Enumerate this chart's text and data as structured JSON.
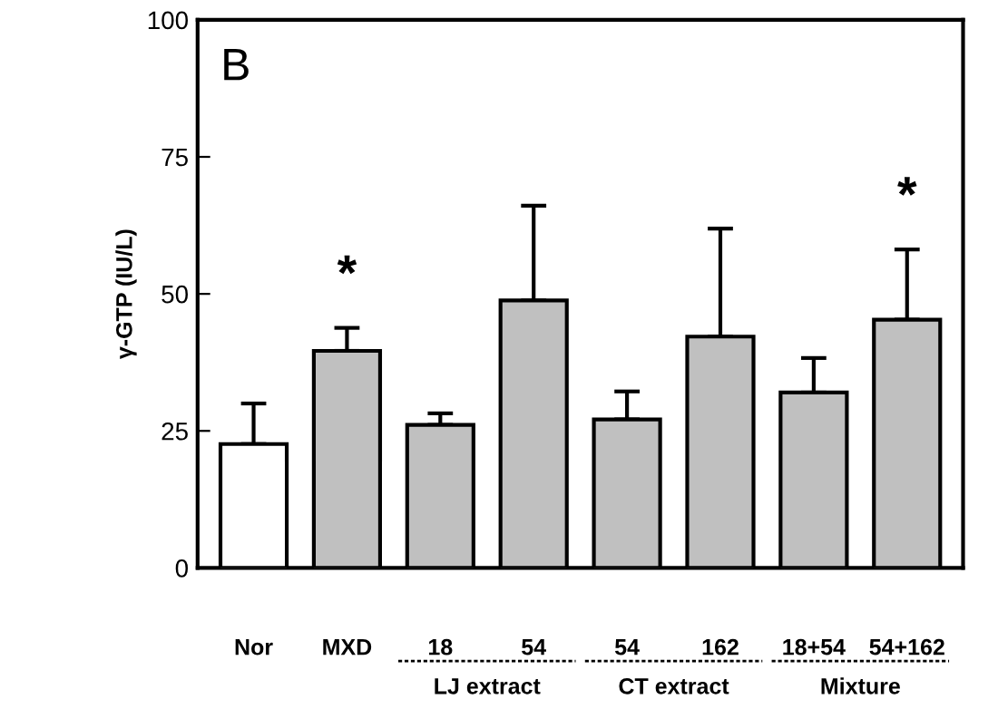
{
  "chart_data": {
    "type": "bar",
    "ylabel": "γ-GTP (IU/L)",
    "categories": [
      "Nor",
      "MXD",
      "18",
      "54",
      "54",
      "162",
      "18+54",
      "54+162"
    ],
    "values": [
      22.6,
      39.6,
      26.1,
      48.8,
      27.1,
      42.2,
      32.0,
      45.3
    ],
    "colors": [
      "#ffffff",
      "#c0c0c0",
      "#c0c0c0",
      "#c0c0c0",
      "#c0c0c0",
      "#c0c0c0",
      "#c0c0c0",
      "#c0c0c0"
    ],
    "errors": [
      [
        22.6,
        30.0
      ],
      [
        39.6,
        43.8
      ],
      [
        26.1,
        28.2
      ],
      [
        48.8,
        66.1
      ],
      [
        27.1,
        32.2
      ],
      [
        42.2,
        61.9
      ],
      [
        32.0,
        38.3
      ],
      [
        45.3,
        58.1
      ]
    ],
    "ylim": [
      0,
      100
    ],
    "yticks": [
      0,
      25,
      50,
      75,
      100
    ],
    "grid": false,
    "legend": false,
    "value_labels": [
      null,
      "*",
      null,
      null,
      null,
      null,
      null,
      "*"
    ],
    "annotations": [
      "B",
      "LJ extract",
      "CT extract",
      "Mixture"
    ]
  }
}
